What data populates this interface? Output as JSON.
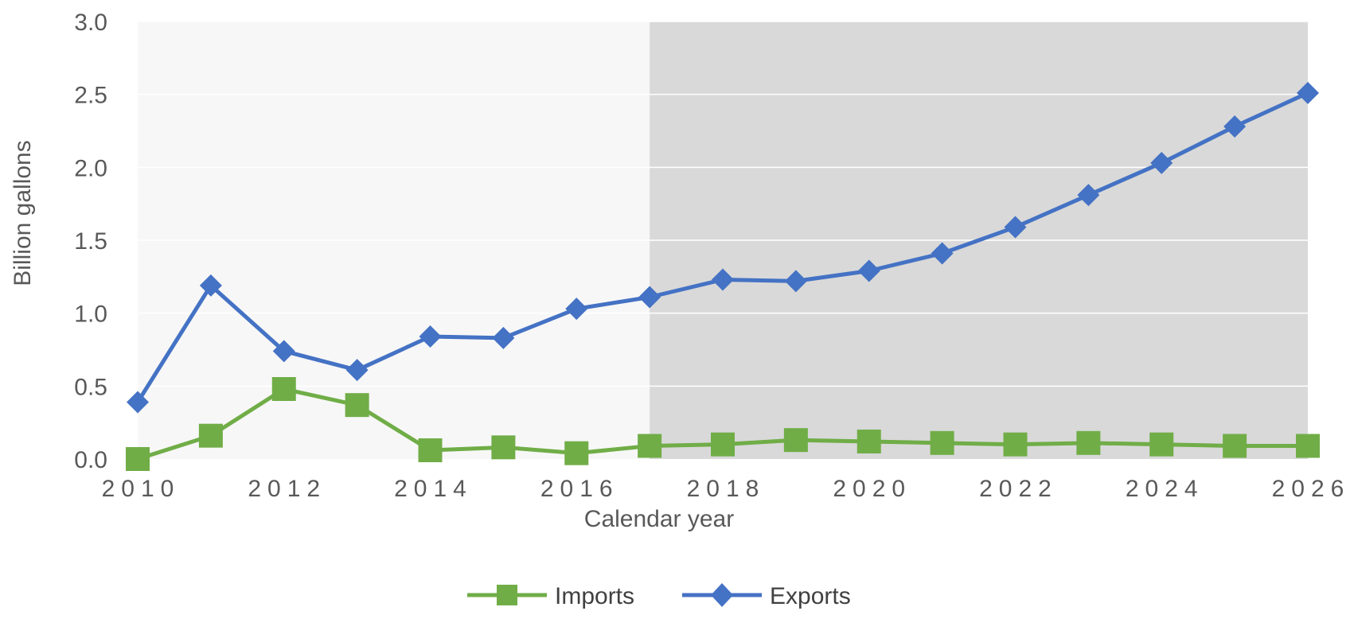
{
  "chart_data": {
    "type": "line",
    "title": "",
    "xlabel": "Calendar year",
    "ylabel": "Billion gallons",
    "x": [
      2010,
      2011,
      2012,
      2013,
      2014,
      2015,
      2016,
      2017,
      2018,
      2019,
      2020,
      2021,
      2022,
      2023,
      2024,
      2025,
      2026
    ],
    "x_ticks": [
      "2010",
      "2012",
      "2014",
      "2016",
      "2018",
      "2020",
      "2022",
      "2024",
      "2026"
    ],
    "y_ticks": [
      "0.0",
      "0.5",
      "1.0",
      "1.5",
      "2.0",
      "2.5",
      "3.0"
    ],
    "ylim": [
      0,
      3.0
    ],
    "xlim": [
      2010,
      2026
    ],
    "grid": true,
    "projection_shaded_from": 2017,
    "legend_position": "bottom",
    "series": [
      {
        "name": "Imports",
        "color": "#70ad47",
        "marker": "square",
        "values": [
          0.0,
          0.16,
          0.48,
          0.37,
          0.06,
          0.08,
          0.04,
          0.09,
          0.1,
          0.13,
          0.12,
          0.11,
          0.1,
          0.11,
          0.1,
          0.09,
          0.09
        ]
      },
      {
        "name": "Exports",
        "color": "#4472c4",
        "marker": "diamond",
        "values": [
          0.39,
          1.19,
          0.74,
          0.61,
          0.84,
          0.83,
          1.03,
          1.11,
          1.23,
          1.22,
          1.29,
          1.41,
          1.59,
          1.81,
          2.03,
          2.28,
          2.51
        ]
      }
    ]
  }
}
